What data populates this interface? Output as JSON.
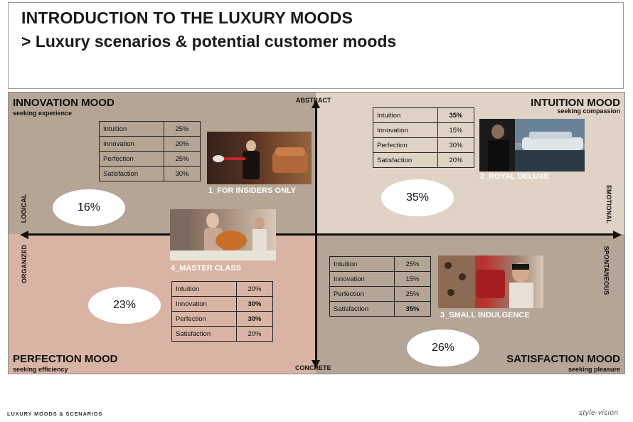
{
  "header": {
    "title": "INTRODUCTION TO THE LUXURY MOODS",
    "subtitle": "> Luxury scenarios & potential customer moods"
  },
  "axes": {
    "top": "ABSTRACT",
    "bottom": "CONCRETE",
    "left_upper": "LOGICAL",
    "left_lower": "ORGANIZED",
    "right_upper": "EMOTIONAL",
    "right_lower": "SPONTANEOUS"
  },
  "colors": {
    "innovation_bg": "#b4a595",
    "intuition_bg": "#e0d2c4",
    "perfection_bg": "#d9b4a4",
    "satisfaction_bg": "#b5a597"
  },
  "quadrants": {
    "innovation": {
      "name": "INNOVATION MOOD",
      "subtitle": "seeking experience",
      "share": "16%",
      "scenario": "1_FOR INSIDERS ONLY",
      "table": [
        {
          "label": "Intuition",
          "value": "25%"
        },
        {
          "label": "Innovation",
          "value": "20%"
        },
        {
          "label": "Perfection",
          "value": "25%"
        },
        {
          "label": "Satisfaction",
          "value": "30%"
        }
      ]
    },
    "intuition": {
      "name": "INTUITION MOOD",
      "subtitle": "seeking compassion",
      "share": "35%",
      "scenario": "2_ROYAL DELUXE",
      "table": [
        {
          "label": "Intuition",
          "value": "35%"
        },
        {
          "label": "Innovation",
          "value": "15%"
        },
        {
          "label": "Perfection",
          "value": "30%"
        },
        {
          "label": "Satisfaction",
          "value": "20%"
        }
      ]
    },
    "perfection": {
      "name": "PERFECTION MOOD",
      "subtitle": "seeking efficiency",
      "share": "23%",
      "scenario": "4_MASTER CLASS",
      "table": [
        {
          "label": "Intuition",
          "value": "20%"
        },
        {
          "label": "Innovation",
          "value": "30%"
        },
        {
          "label": "Perfection",
          "value": "30%"
        },
        {
          "label": "Satisfaction",
          "value": "20%"
        }
      ]
    },
    "satisfaction": {
      "name": "SATISFACTION MOOD",
      "subtitle": "seeking pleasure",
      "share": "26%",
      "scenario": "3_SMALL INDULGENCE",
      "table": [
        {
          "label": "Intuition",
          "value": "25%"
        },
        {
          "label": "Innovation",
          "value": "15%"
        },
        {
          "label": "Perfection",
          "value": "25%"
        },
        {
          "label": "Satisfaction",
          "value": "35%"
        }
      ]
    }
  },
  "footer": {
    "left": "LUXURY MOODS & SCENARIOS",
    "right": "style-vision"
  }
}
